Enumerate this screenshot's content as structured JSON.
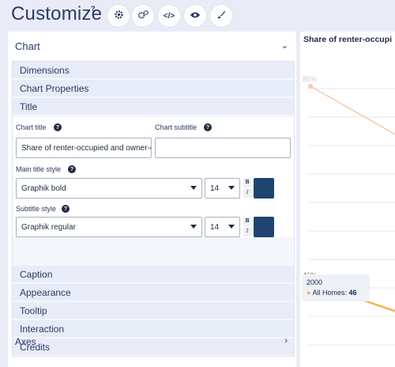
{
  "app": {
    "title": "Customize",
    "help_mark": "?"
  },
  "toolbar": {
    "buttons": [
      {
        "icon": "gear-icon",
        "glyph": "⚙"
      },
      {
        "icon": "gears-icon",
        "glyph": "⚙"
      },
      {
        "icon": "code-icon",
        "glyph": "</>"
      },
      {
        "icon": "eye-icon",
        "glyph": "◉"
      },
      {
        "icon": "brush-icon",
        "glyph": "✎"
      }
    ]
  },
  "panel": {
    "header": "Chart",
    "sections_top": [
      "Dimensions",
      "Chart Properties",
      "Title"
    ],
    "sections_bottom": [
      "Caption",
      "Appearance",
      "Tooltip",
      "Interaction",
      "Credits"
    ],
    "axes_label": "Axes"
  },
  "title_settings": {
    "chart_title_label": "Chart title",
    "chart_title_value": "Share of renter-occupied and owner-occ",
    "chart_subtitle_label": "Chart subtitle",
    "chart_subtitle_value": "",
    "main_title_style_label": "Main title style",
    "main_title_font": "Graphik bold",
    "main_title_size": "14",
    "subtitle_style_label": "Subtitle style",
    "subtitle_font": "Graphik regular",
    "subtitle_size": "14",
    "bold_glyph": "B",
    "italic_glyph": "I",
    "help_mark": "?"
  },
  "colors": {
    "accent": "#2a3a63",
    "title_color_swatch": "#1f4470",
    "subtitle_color_swatch": "#1f4470",
    "line_renter": "#f7c8a8",
    "line_all": "#f2b54a"
  },
  "preview": {
    "title": "Share of renter-occupi",
    "tooltip_year": "2000",
    "tooltip_series": "All Homes:",
    "tooltip_value": "46"
  },
  "chart_data": {
    "type": "line",
    "title": "Share of renter-occupi",
    "x": [
      "2000",
      ""
    ],
    "series": [
      {
        "name": "",
        "values": [
          85,
          75
        ],
        "color": "#f7c8a8"
      },
      {
        "name": "All Homes",
        "values": [
          46,
          40
        ],
        "color": "#f2b54a"
      }
    ],
    "data_labels": [
      "85%",
      "46%"
    ]
  }
}
